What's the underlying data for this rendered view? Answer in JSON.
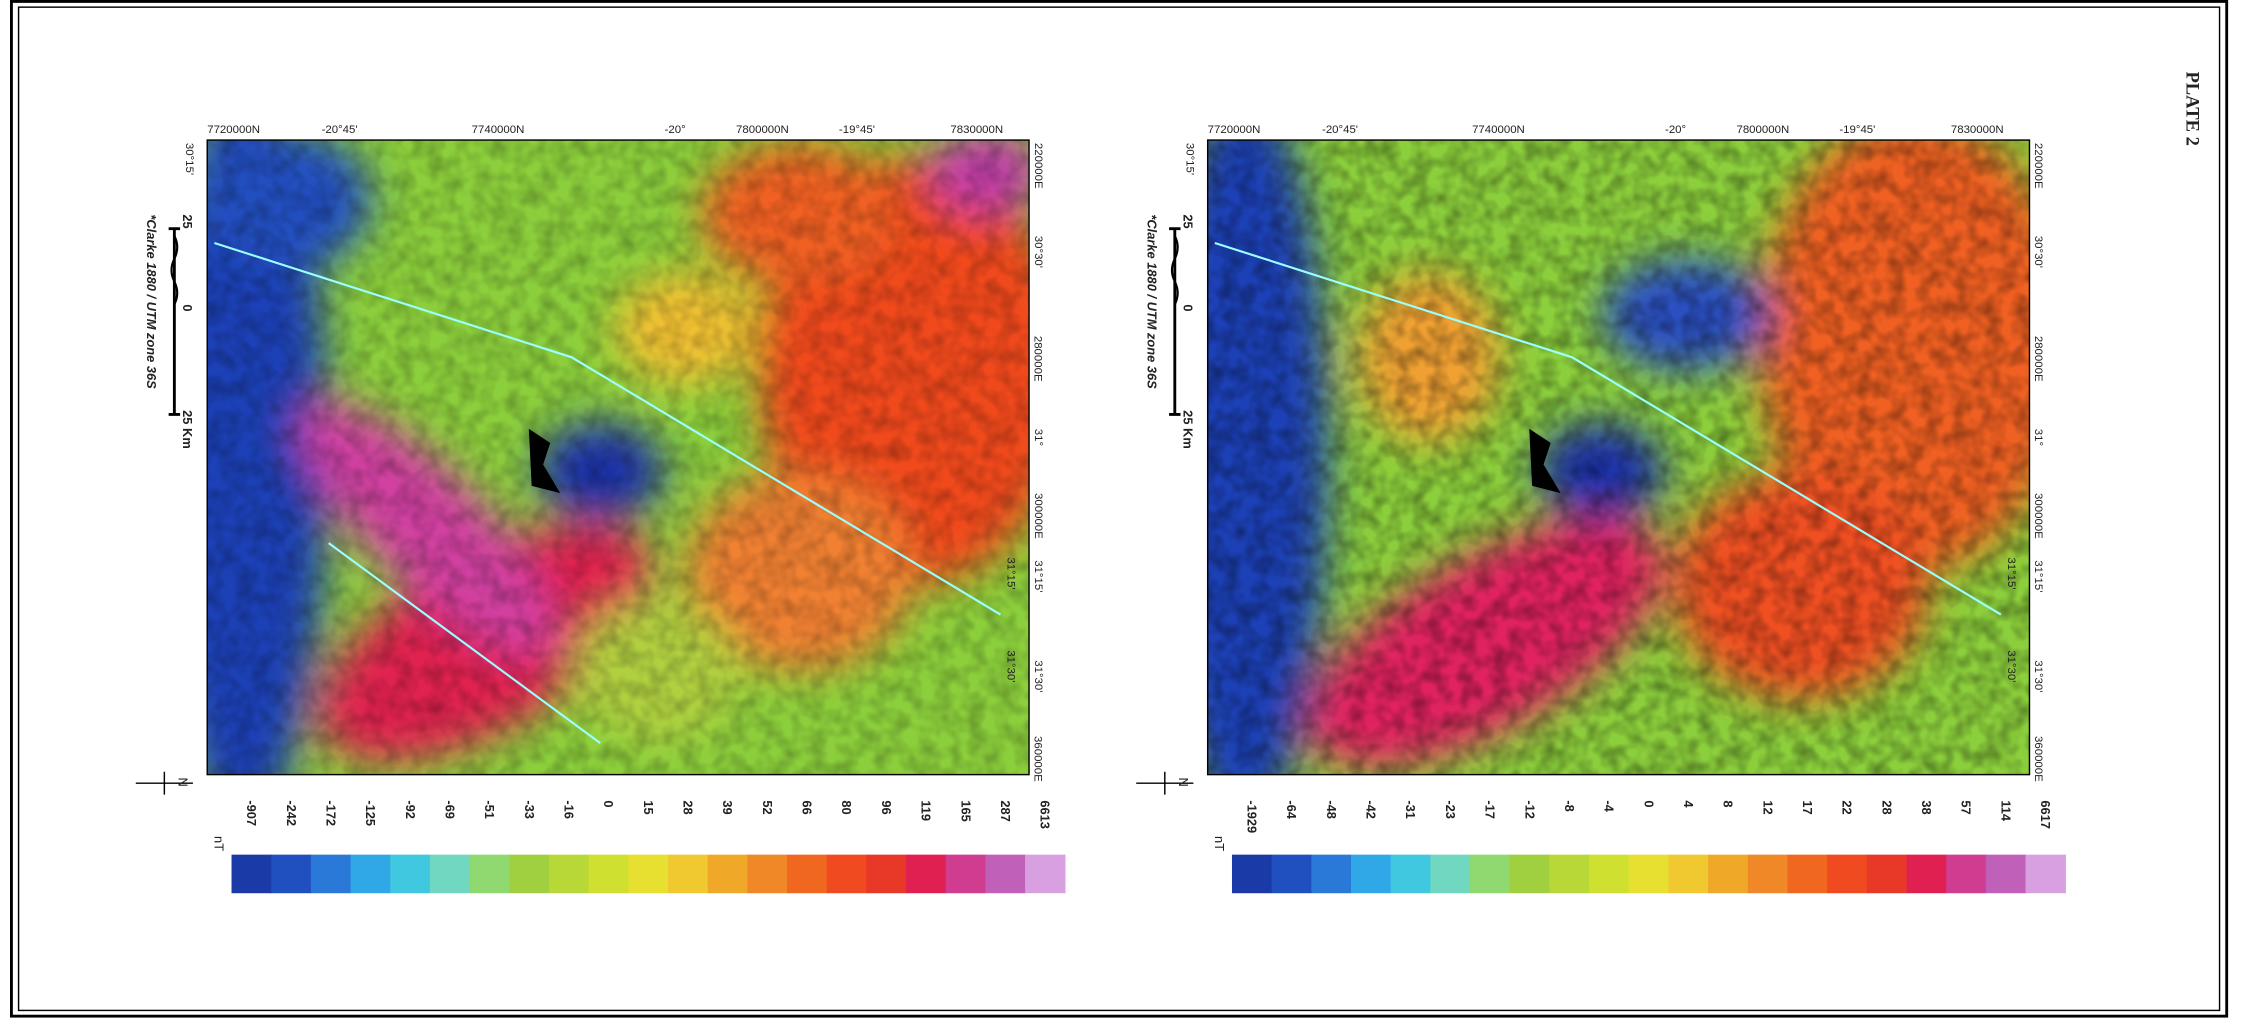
{
  "plate_label": "PLATE 2",
  "maps": [
    {
      "top_labels": [
        "7720000N",
        "-20°45'",
        "7740000N",
        "-20°",
        "7800000N",
        "-19°45'",
        "7830000N"
      ],
      "right_labels": [
        "220000E",
        "30°30'",
        "280000E",
        "31°",
        "300000E",
        "31°15'",
        "31°30'",
        "360000E"
      ],
      "left_labels": [
        "30°15'",
        "31°15'",
        "31°30'"
      ],
      "scale": [
        "25",
        "0",
        "25 Km"
      ],
      "projection": "*Clarke 1880 / UTM zone 36S",
      "north": "N",
      "unit": "nT",
      "legend": [
        "-907",
        "-242",
        "-172",
        "-125",
        "-92",
        "-69",
        "-51",
        "-33",
        "-16",
        "0",
        "15",
        "28",
        "39",
        "52",
        "66",
        "80",
        "96",
        "119",
        "165",
        "287",
        "6613"
      ]
    },
    {
      "top_labels": [
        "7720000N",
        "-20°45'",
        "7740000N",
        "-20°",
        "7800000N",
        "-19°45'",
        "7830000N"
      ],
      "right_labels": [
        "220000E",
        "30°30'",
        "280000E",
        "31°",
        "300000E",
        "31°15'",
        "31°30'",
        "360000E"
      ],
      "left_labels": [
        "30°15'",
        "31°15'",
        "31°30'"
      ],
      "scale": [
        "25",
        "0",
        "25 Km"
      ],
      "projection": "*Clarke 1880 / UTM zone 36S",
      "north": "N",
      "unit": "nT",
      "legend": [
        "-1929",
        "-64",
        "-48",
        "-42",
        "-31",
        "-23",
        "-17",
        "-12",
        "-8",
        "-4",
        "0",
        "4",
        "8",
        "12",
        "17",
        "22",
        "28",
        "38",
        "57",
        "114",
        "6617"
      ]
    }
  ]
}
